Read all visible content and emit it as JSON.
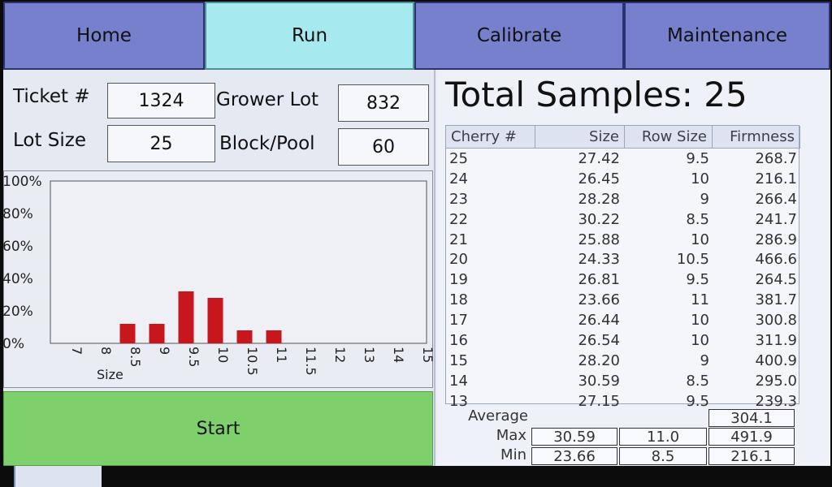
{
  "tabs": [
    {
      "label": "Home"
    },
    {
      "label": "Run"
    },
    {
      "label": "Calibrate"
    },
    {
      "label": "Maintenance"
    }
  ],
  "form": {
    "ticket_label": "Ticket #",
    "ticket_value": "1324",
    "grower_lot_label": "Grower Lot",
    "grower_lot_value": "832",
    "lot_size_label": "Lot Size",
    "lot_size_value": "25",
    "block_pool_label": "Block/Pool",
    "block_pool_value": "60"
  },
  "chart_data": {
    "type": "bar",
    "categories": [
      "7",
      "8",
      "8.5",
      "9",
      "9.5",
      "10",
      "10.5",
      "11",
      "11.5",
      "12",
      "13",
      "14",
      "15"
    ],
    "values": [
      0,
      0,
      12,
      12,
      32,
      28,
      8,
      8,
      0,
      0,
      0,
      0,
      0
    ],
    "ylim": [
      0,
      100
    ],
    "yticks": [
      "0%",
      "20%",
      "40%",
      "60%",
      "80%",
      "100%"
    ],
    "xlabel": "Size",
    "bar_color": "#c8161d"
  },
  "start_label": "Start",
  "total_samples": "Total Samples: 25",
  "table": {
    "headers": [
      "Cherry #",
      "Size",
      "Row Size",
      "Firmness"
    ],
    "rows": [
      [
        "25",
        "27.42",
        "9.5",
        "268.7"
      ],
      [
        "24",
        "26.45",
        "10",
        "216.1"
      ],
      [
        "23",
        "28.28",
        "9",
        "266.4"
      ],
      [
        "22",
        "30.22",
        "8.5",
        "241.7"
      ],
      [
        "21",
        "25.88",
        "10",
        "286.9"
      ],
      [
        "20",
        "24.33",
        "10.5",
        "466.6"
      ],
      [
        "19",
        "26.81",
        "9.5",
        "264.5"
      ],
      [
        "18",
        "23.66",
        "11",
        "381.7"
      ],
      [
        "17",
        "26.44",
        "10",
        "300.8"
      ],
      [
        "16",
        "26.54",
        "10",
        "311.9"
      ],
      [
        "15",
        "28.20",
        "9",
        "400.9"
      ],
      [
        "14",
        "30.59",
        "8.5",
        "295.0"
      ],
      [
        "13",
        "27.15",
        "9.5",
        "239.3"
      ]
    ]
  },
  "stats": {
    "average_label": "Average",
    "average_firmness": "304.1",
    "max_label": "Max",
    "max_size": "30.59",
    "max_row_size": "11.0",
    "max_firmness": "491.9",
    "min_label": "Min",
    "min_size": "23.66",
    "min_row_size": "8.5",
    "min_firmness": "216.1"
  }
}
